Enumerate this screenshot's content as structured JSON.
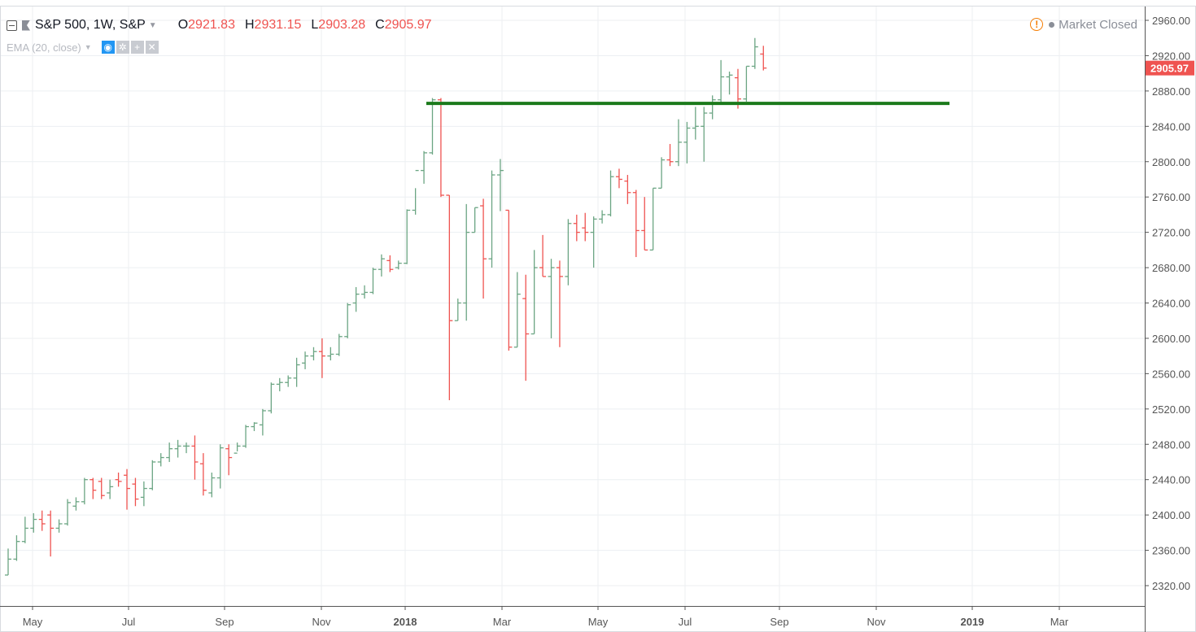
{
  "legend": {
    "symbol": "S&P 500, 1W, S&P",
    "open_label": "O",
    "open_value": "2921.83",
    "high_label": "H",
    "high_value": "2931.15",
    "low_label": "L",
    "low_value": "2903.28",
    "close_label": "C",
    "close_value": "2905.97"
  },
  "study": {
    "label": "EMA (20, close)"
  },
  "status": {
    "label": "Market Closed"
  },
  "colors": {
    "up": "#6ba583",
    "down": "#ef5350",
    "level_line": "#1b7a1b",
    "grid": "#eceff2",
    "axis_text": "#555555"
  },
  "chart_data": {
    "type": "ohlc",
    "interval": "weekly",
    "ylim": [
      2300,
      2970
    ],
    "y_ticks": [
      2320,
      2360,
      2400,
      2440,
      2480,
      2520,
      2560,
      2600,
      2640,
      2680,
      2720,
      2760,
      2800,
      2840,
      2880,
      2920,
      2960
    ],
    "y_tick_labels": [
      "2320.00",
      "2360.00",
      "2400.00",
      "2440.00",
      "2480.00",
      "2520.00",
      "2560.00",
      "2600.00",
      "2640.00",
      "2680.00",
      "2720.00",
      "2760.00",
      "2800.00",
      "2840.00",
      "2880.00",
      "2920.00",
      "2960.00"
    ],
    "x_tick_labels": [
      "May",
      "Jul",
      "Sep",
      "Nov",
      "2018",
      "Mar",
      "May",
      "Jul",
      "Sep",
      "Nov",
      "2019",
      "Mar"
    ],
    "last_price_label": "2905.97",
    "last_price": 2905.97,
    "horizontal_level": 2866,
    "bars": [
      [
        2332,
        2362,
        2332,
        2350
      ],
      [
        2350,
        2377,
        2348,
        2370
      ],
      [
        2370,
        2398,
        2368,
        2385
      ],
      [
        2385,
        2402,
        2380,
        2395
      ],
      [
        2395,
        2405,
        2382,
        2390
      ],
      [
        2400,
        2405,
        2353,
        2385
      ],
      [
        2385,
        2395,
        2380,
        2390
      ],
      [
        2390,
        2418,
        2388,
        2414
      ],
      [
        2410,
        2420,
        2405,
        2415
      ],
      [
        2415,
        2442,
        2412,
        2440
      ],
      [
        2440,
        2442,
        2418,
        2428
      ],
      [
        2438,
        2442,
        2418,
        2422
      ],
      [
        2425,
        2440,
        2418,
        2432
      ],
      [
        2440,
        2448,
        2432,
        2438
      ],
      [
        2445,
        2452,
        2406,
        2430
      ],
      [
        2435,
        2442,
        2410,
        2418
      ],
      [
        2420,
        2438,
        2410,
        2430
      ],
      [
        2430,
        2462,
        2428,
        2460
      ],
      [
        2460,
        2470,
        2455,
        2465
      ],
      [
        2465,
        2482,
        2460,
        2475
      ],
      [
        2475,
        2485,
        2465,
        2478
      ],
      [
        2478,
        2482,
        2470,
        2478
      ],
      [
        2478,
        2490,
        2440,
        2460
      ],
      [
        2458,
        2470,
        2422,
        2428
      ],
      [
        2425,
        2448,
        2420,
        2442
      ],
      [
        2442,
        2480,
        2430,
        2476
      ],
      [
        2475,
        2480,
        2445,
        2465
      ],
      [
        2470,
        2482,
        2472,
        2478
      ],
      [
        2478,
        2502,
        2476,
        2500
      ],
      [
        2500,
        2505,
        2495,
        2504
      ],
      [
        2502,
        2520,
        2490,
        2518
      ],
      [
        2518,
        2550,
        2515,
        2548
      ],
      [
        2548,
        2555,
        2540,
        2550
      ],
      [
        2550,
        2558,
        2545,
        2555
      ],
      [
        2555,
        2578,
        2545,
        2570
      ],
      [
        2572,
        2585,
        2565,
        2580
      ],
      [
        2580,
        2590,
        2575,
        2585
      ],
      [
        2585,
        2600,
        2555,
        2580
      ],
      [
        2580,
        2590,
        2575,
        2582
      ],
      [
        2582,
        2605,
        2580,
        2602
      ],
      [
        2602,
        2640,
        2600,
        2638
      ],
      [
        2640,
        2658,
        2630,
        2650
      ],
      [
        2650,
        2660,
        2645,
        2652
      ],
      [
        2652,
        2680,
        2650,
        2678
      ],
      [
        2678,
        2695,
        2670,
        2690
      ],
      [
        2688,
        2694,
        2675,
        2678
      ],
      [
        2680,
        2688,
        2678,
        2685
      ],
      [
        2685,
        2746,
        2684,
        2745
      ],
      [
        2745,
        2770,
        2740,
        2790
      ],
      [
        2790,
        2812,
        2775,
        2810
      ],
      [
        2810,
        2872,
        2808,
        2870
      ],
      [
        2870,
        2872,
        2760,
        2762
      ],
      [
        2762,
        2762,
        2530,
        2620
      ],
      [
        2620,
        2645,
        2620,
        2640
      ],
      [
        2640,
        2752,
        2620,
        2720
      ],
      [
        2720,
        2748,
        2720,
        2748
      ],
      [
        2750,
        2758,
        2645,
        2690
      ],
      [
        2690,
        2790,
        2680,
        2785
      ],
      [
        2785,
        2803,
        2744,
        2790
      ],
      [
        2745,
        2745,
        2586,
        2590
      ],
      [
        2590,
        2675,
        2590,
        2650
      ],
      [
        2645,
        2672,
        2552,
        2605
      ],
      [
        2605,
        2700,
        2605,
        2680
      ],
      [
        2680,
        2717,
        2670,
        2670
      ],
      [
        2670,
        2690,
        2600,
        2680
      ],
      [
        2680,
        2688,
        2590,
        2670
      ],
      [
        2670,
        2735,
        2660,
        2730
      ],
      [
        2730,
        2740,
        2710,
        2720
      ],
      [
        2725,
        2742,
        2710,
        2720
      ],
      [
        2720,
        2738,
        2680,
        2735
      ],
      [
        2735,
        2745,
        2730,
        2740
      ],
      [
        2740,
        2790,
        2738,
        2783
      ],
      [
        2783,
        2792,
        2770,
        2780
      ],
      [
        2778,
        2785,
        2752,
        2765
      ],
      [
        2765,
        2768,
        2692,
        2722
      ],
      [
        2722,
        2760,
        2700,
        2700
      ],
      [
        2700,
        2770,
        2700,
        2770
      ],
      [
        2770,
        2805,
        2770,
        2802
      ],
      [
        2802,
        2820,
        2795,
        2800
      ],
      [
        2800,
        2848,
        2795,
        2822
      ],
      [
        2822,
        2845,
        2798,
        2838
      ],
      [
        2838,
        2862,
        2825,
        2840
      ],
      [
        2840,
        2862,
        2800,
        2855
      ],
      [
        2855,
        2875,
        2848,
        2870
      ],
      [
        2870,
        2915,
        2865,
        2896
      ],
      [
        2896,
        2902,
        2876,
        2898
      ],
      [
        2895,
        2905,
        2860,
        2871
      ],
      [
        2871,
        2908,
        2868,
        2908
      ],
      [
        2908,
        2940,
        2905,
        2930
      ],
      [
        2921.83,
        2931.15,
        2903.28,
        2905.97
      ]
    ]
  }
}
